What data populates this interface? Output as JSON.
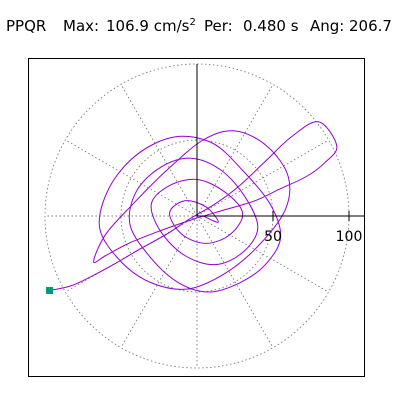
{
  "header": {
    "station": "PPQR",
    "max_label": "Max:",
    "max_value": "106.9 cm/s",
    "max_unit_exp": "2",
    "per_label": "Per:",
    "per_value": "0.480 s",
    "ang_label": "Ang:",
    "ang_value": "206.7"
  },
  "chart_data": {
    "type": "scatter",
    "subtype": "polar particle-motion trace",
    "title": "",
    "r_ticks": [
      50,
      100
    ],
    "r_tick_labels": [
      "50",
      "100"
    ],
    "r_max": 100,
    "angular_gridlines_deg": [
      0,
      30,
      60,
      90,
      120,
      150,
      180,
      210,
      240,
      270,
      300,
      330
    ],
    "max_amplitude": 106.9,
    "max_angle_deg": 206.7,
    "period_s": 0.48,
    "trace_color": "#9400d3",
    "marker_color": "#009a7a",
    "grid_style": "dotted",
    "axes": "positive x and y radial axes drawn solid from origin",
    "trace_samples": {
      "x": [
        -97,
        -83,
        -70,
        -55,
        -38,
        -20,
        -5,
        12,
        28,
        45,
        62,
        80,
        92,
        84,
        72,
        55,
        38,
        18,
        -2,
        -25,
        -45,
        -60,
        -68,
        -60,
        -42,
        -20,
        4,
        25,
        46,
        60,
        58,
        40,
        18,
        -6,
        -30,
        -50,
        -64,
        -58,
        -40,
        -15,
        10,
        30,
        48,
        55,
        45,
        28,
        8,
        -12,
        -30,
        -44,
        -40,
        -24,
        -4,
        16,
        32,
        40,
        30,
        12,
        -8,
        -24,
        -30,
        -18,
        0,
        18,
        30,
        22,
        6,
        -10,
        -18,
        -8,
        6,
        14,
        4
      ],
      "y": [
        -49,
        -46,
        -40,
        -32,
        -22,
        -12,
        -2,
        8,
        20,
        36,
        52,
        62,
        46,
        35,
        26,
        18,
        10,
        4,
        -2,
        -10,
        -18,
        -26,
        -30,
        -12,
        8,
        30,
        50,
        56,
        46,
        26,
        4,
        -20,
        -38,
        -48,
        -44,
        -30,
        -8,
        18,
        40,
        52,
        48,
        30,
        8,
        -14,
        -32,
        -44,
        -50,
        -44,
        -28,
        -6,
        16,
        32,
        38,
        30,
        12,
        -8,
        -24,
        -32,
        -26,
        -10,
        8,
        20,
        24,
        16,
        2,
        -12,
        -18,
        -12,
        2,
        10,
        6,
        -4,
        0
      ]
    },
    "start_marker": {
      "x": -97,
      "y": -49
    }
  }
}
